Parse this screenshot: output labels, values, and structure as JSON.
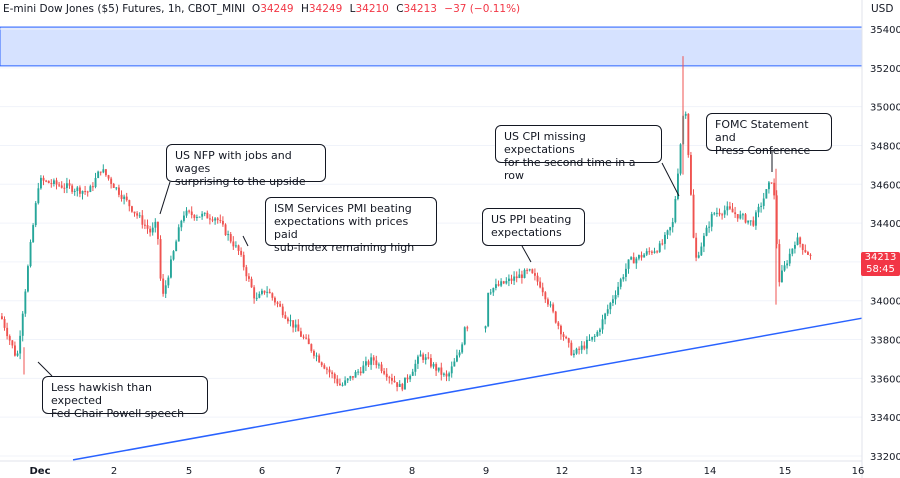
{
  "header": {
    "title": "E-mini Dow Jones ($5) Futures, 1h, CBOT_MINI",
    "open_label": "O",
    "open": "34249",
    "high_label": "H",
    "high": "34249",
    "low_label": "L",
    "low": "34210",
    "close_label": "C",
    "close": "34213",
    "change": "−37 (−0.11%)"
  },
  "currency": "USD",
  "price_tag": {
    "price": "34213",
    "countdown": "58:45",
    "color": "#f23645"
  },
  "colors": {
    "up": "#26a69a",
    "down": "#ef5350",
    "zone": "#d6e2ff",
    "trendline": "#2962ff"
  },
  "annotations": [
    {
      "id": "nfp",
      "lines": [
        "US NFP with jobs and wages",
        "surprising to the upside"
      ]
    },
    {
      "id": "ism",
      "lines": [
        "ISM Services PMI beating",
        "expectations with prices paid",
        "sub-index remaining high"
      ]
    },
    {
      "id": "powell",
      "lines": [
        "Less hawkish than expected",
        "Fed Chair Powell speech"
      ]
    },
    {
      "id": "ppi",
      "lines": [
        "US PPI beating",
        "expectations"
      ]
    },
    {
      "id": "cpi",
      "lines": [
        "US CPI missing expectations",
        "for the second time in a row"
      ]
    },
    {
      "id": "fomc",
      "lines": [
        "FOMC Statement and",
        "Press Conference"
      ]
    }
  ],
  "chart_data": {
    "type": "candlestick",
    "y_axis": {
      "ticks": [
        33200,
        33400,
        33600,
        33800,
        34000,
        34200,
        34400,
        34600,
        34800,
        35000,
        35200,
        35400
      ],
      "range": [
        33180,
        35460
      ]
    },
    "x_axis": {
      "ticks": [
        "Dec",
        "2",
        "5",
        "6",
        "7",
        "8",
        "9",
        "12",
        "13",
        "14",
        "15",
        "16"
      ]
    },
    "resistance_zone": {
      "from": 35210,
      "to": 35410
    },
    "trendline": {
      "start": [
        "Dec 1",
        33180
      ],
      "end": [
        "Dec 16",
        33910
      ]
    },
    "last_close": 34213,
    "price_path": [
      [
        "Nov 30 AM",
        33920
      ],
      [
        "Nov 30 PM",
        33700
      ],
      [
        "Dec 1 AM",
        34300
      ],
      [
        "Dec 1 PM",
        34620
      ],
      [
        "Dec 2 AM",
        34560
      ],
      [
        "Dec 2 mid",
        34680
      ],
      [
        "Dec 2 PM",
        34350
      ],
      [
        "Dec 2 late",
        34400
      ],
      [
        "Dec 5 AM",
        34000
      ],
      [
        "Dec 5 mid",
        34450
      ],
      [
        "Dec 5 PM",
        34430
      ],
      [
        "Dec 6 AM",
        34250
      ],
      [
        "Dec 6 mid",
        34000
      ],
      [
        "Dec 6 PM",
        34060
      ],
      [
        "Dec 7 AM",
        33700
      ],
      [
        "Dec 7 mid",
        33560
      ],
      [
        "Dec 7 PM",
        33700
      ],
      [
        "Dec 8 AM",
        33550
      ],
      [
        "Dec 8 mid",
        33720
      ],
      [
        "Dec 8 PM",
        33600
      ],
      [
        "Dec 9 AM",
        33750
      ],
      [
        "Dec 9 mid",
        33880
      ],
      [
        "Dec 9 PM",
        33800
      ],
      [
        "Dec 9 late",
        34050
      ],
      [
        "Dec 12 AM",
        34150
      ],
      [
        "Dec 12 mid",
        34080
      ],
      [
        "Dec 12 PM",
        33900
      ],
      [
        "Dec 12 late",
        33720
      ],
      [
        "Dec 13 AM",
        33820
      ],
      [
        "Dec 13 mid",
        34200
      ],
      [
        "Dec 13 PM",
        34280
      ],
      [
        "Dec 13 late",
        34400
      ],
      [
        "Dec 13 CPI",
        35050
      ],
      [
        "Dec 13 close",
        34200
      ],
      [
        "Dec 14 AM",
        34450
      ],
      [
        "Dec 14 mid",
        34470
      ],
      [
        "Dec 14 PM",
        34400
      ],
      [
        "Dec 14 FOMC",
        34640
      ],
      [
        "Dec 15 AM",
        34100
      ],
      [
        "Dec 15 mid",
        34320
      ],
      [
        "Dec 15 last",
        34213
      ]
    ]
  }
}
